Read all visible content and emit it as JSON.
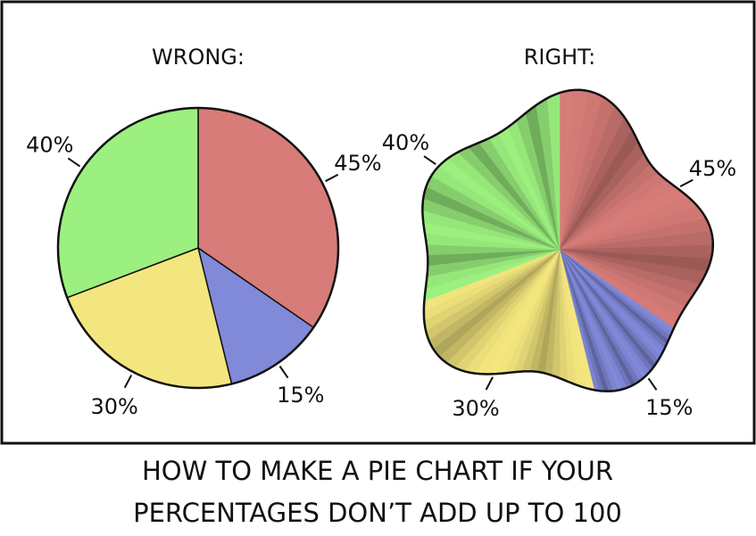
{
  "chart_data": [
    {
      "type": "pie",
      "title": "WRONG:",
      "style": "flat",
      "values": [
        45,
        15,
        30,
        40
      ],
      "value_labels": [
        "45%",
        "15%",
        "30%",
        "40%"
      ],
      "colors": [
        "#d77c78",
        "#8189d9",
        "#f4e67e",
        "#9cf07f"
      ]
    },
    {
      "type": "pie",
      "title": "RIGHT:",
      "style": "folded",
      "values": [
        45,
        15,
        30,
        40
      ],
      "value_labels": [
        "45%",
        "15%",
        "30%",
        "40%"
      ],
      "colors": [
        "#d77c78",
        "#8189d9",
        "#f4e67e",
        "#9cf07f"
      ]
    }
  ],
  "caption": [
    "HOW TO MAKE A PIE CHART IF YOUR",
    "PERCENTAGES DON’T ADD UP TO 100"
  ]
}
